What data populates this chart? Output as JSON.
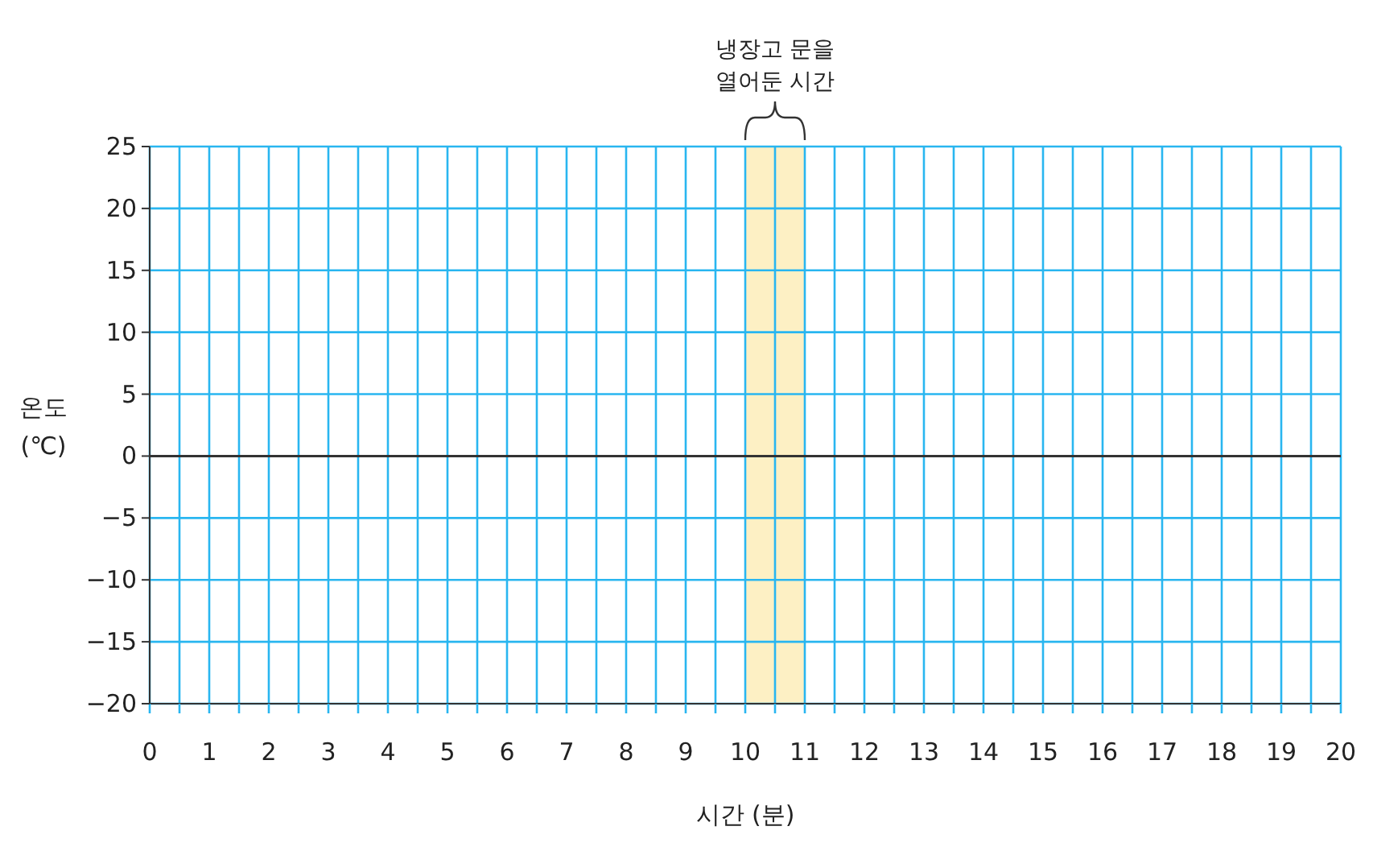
{
  "chart_data": {
    "type": "line",
    "xlabel": "시간 (분)",
    "ylabel": "온도\n(℃)",
    "xlim": [
      0,
      20
    ],
    "xticks": [
      0,
      {
        "value": 0.5,
        "label": null
      },
      1,
      {
        "value": 1.5,
        "label": null
      },
      2,
      {
        "value": 2.5,
        "label": null
      },
      3,
      {
        "value": 3.5,
        "label": null
      },
      4,
      {
        "value": 4.5,
        "label": null
      },
      5,
      {
        "value": 5.5,
        "label": null
      },
      6,
      {
        "value": 6.5,
        "label": null
      },
      7,
      {
        "value": 7.5,
        "label": null
      },
      8,
      {
        "value": 8.5,
        "label": null
      },
      9,
      {
        "value": 9.5,
        "label": null
      },
      10,
      {
        "value": 10.5,
        "label": null
      },
      11,
      {
        "value": 11.5,
        "label": null
      },
      12,
      {
        "value": 12.5,
        "label": null
      },
      13,
      {
        "value": 13.5,
        "label": null
      },
      14,
      {
        "value": 14.5,
        "label": null
      },
      15,
      {
        "value": 15.5,
        "label": null
      },
      16,
      {
        "value": 16.5,
        "label": null
      },
      17,
      {
        "value": 17.5,
        "label": null
      },
      18,
      {
        "value": 18.5,
        "label": null
      },
      19,
      {
        "value": 19.5,
        "label": null
      },
      20
    ],
    "ylim": [
      -20,
      25
    ],
    "yticks": [
      {
        "value": -20,
        "label": "−20"
      },
      {
        "value": -15,
        "label": "−15"
      },
      {
        "value": -10,
        "label": "−10"
      },
      {
        "value": -5,
        "label": "−5"
      },
      0,
      5,
      10,
      15,
      20,
      25
    ],
    "grid": true,
    "bands": [
      {
        "axis": "x",
        "from": 10,
        "to": 11,
        "label": "냉장고 문을\n열어둔 시간",
        "color": "#fdf0c4"
      }
    ],
    "ref_lines": [
      {
        "axis": "y",
        "value": 0,
        "color": "#333333"
      }
    ]
  }
}
